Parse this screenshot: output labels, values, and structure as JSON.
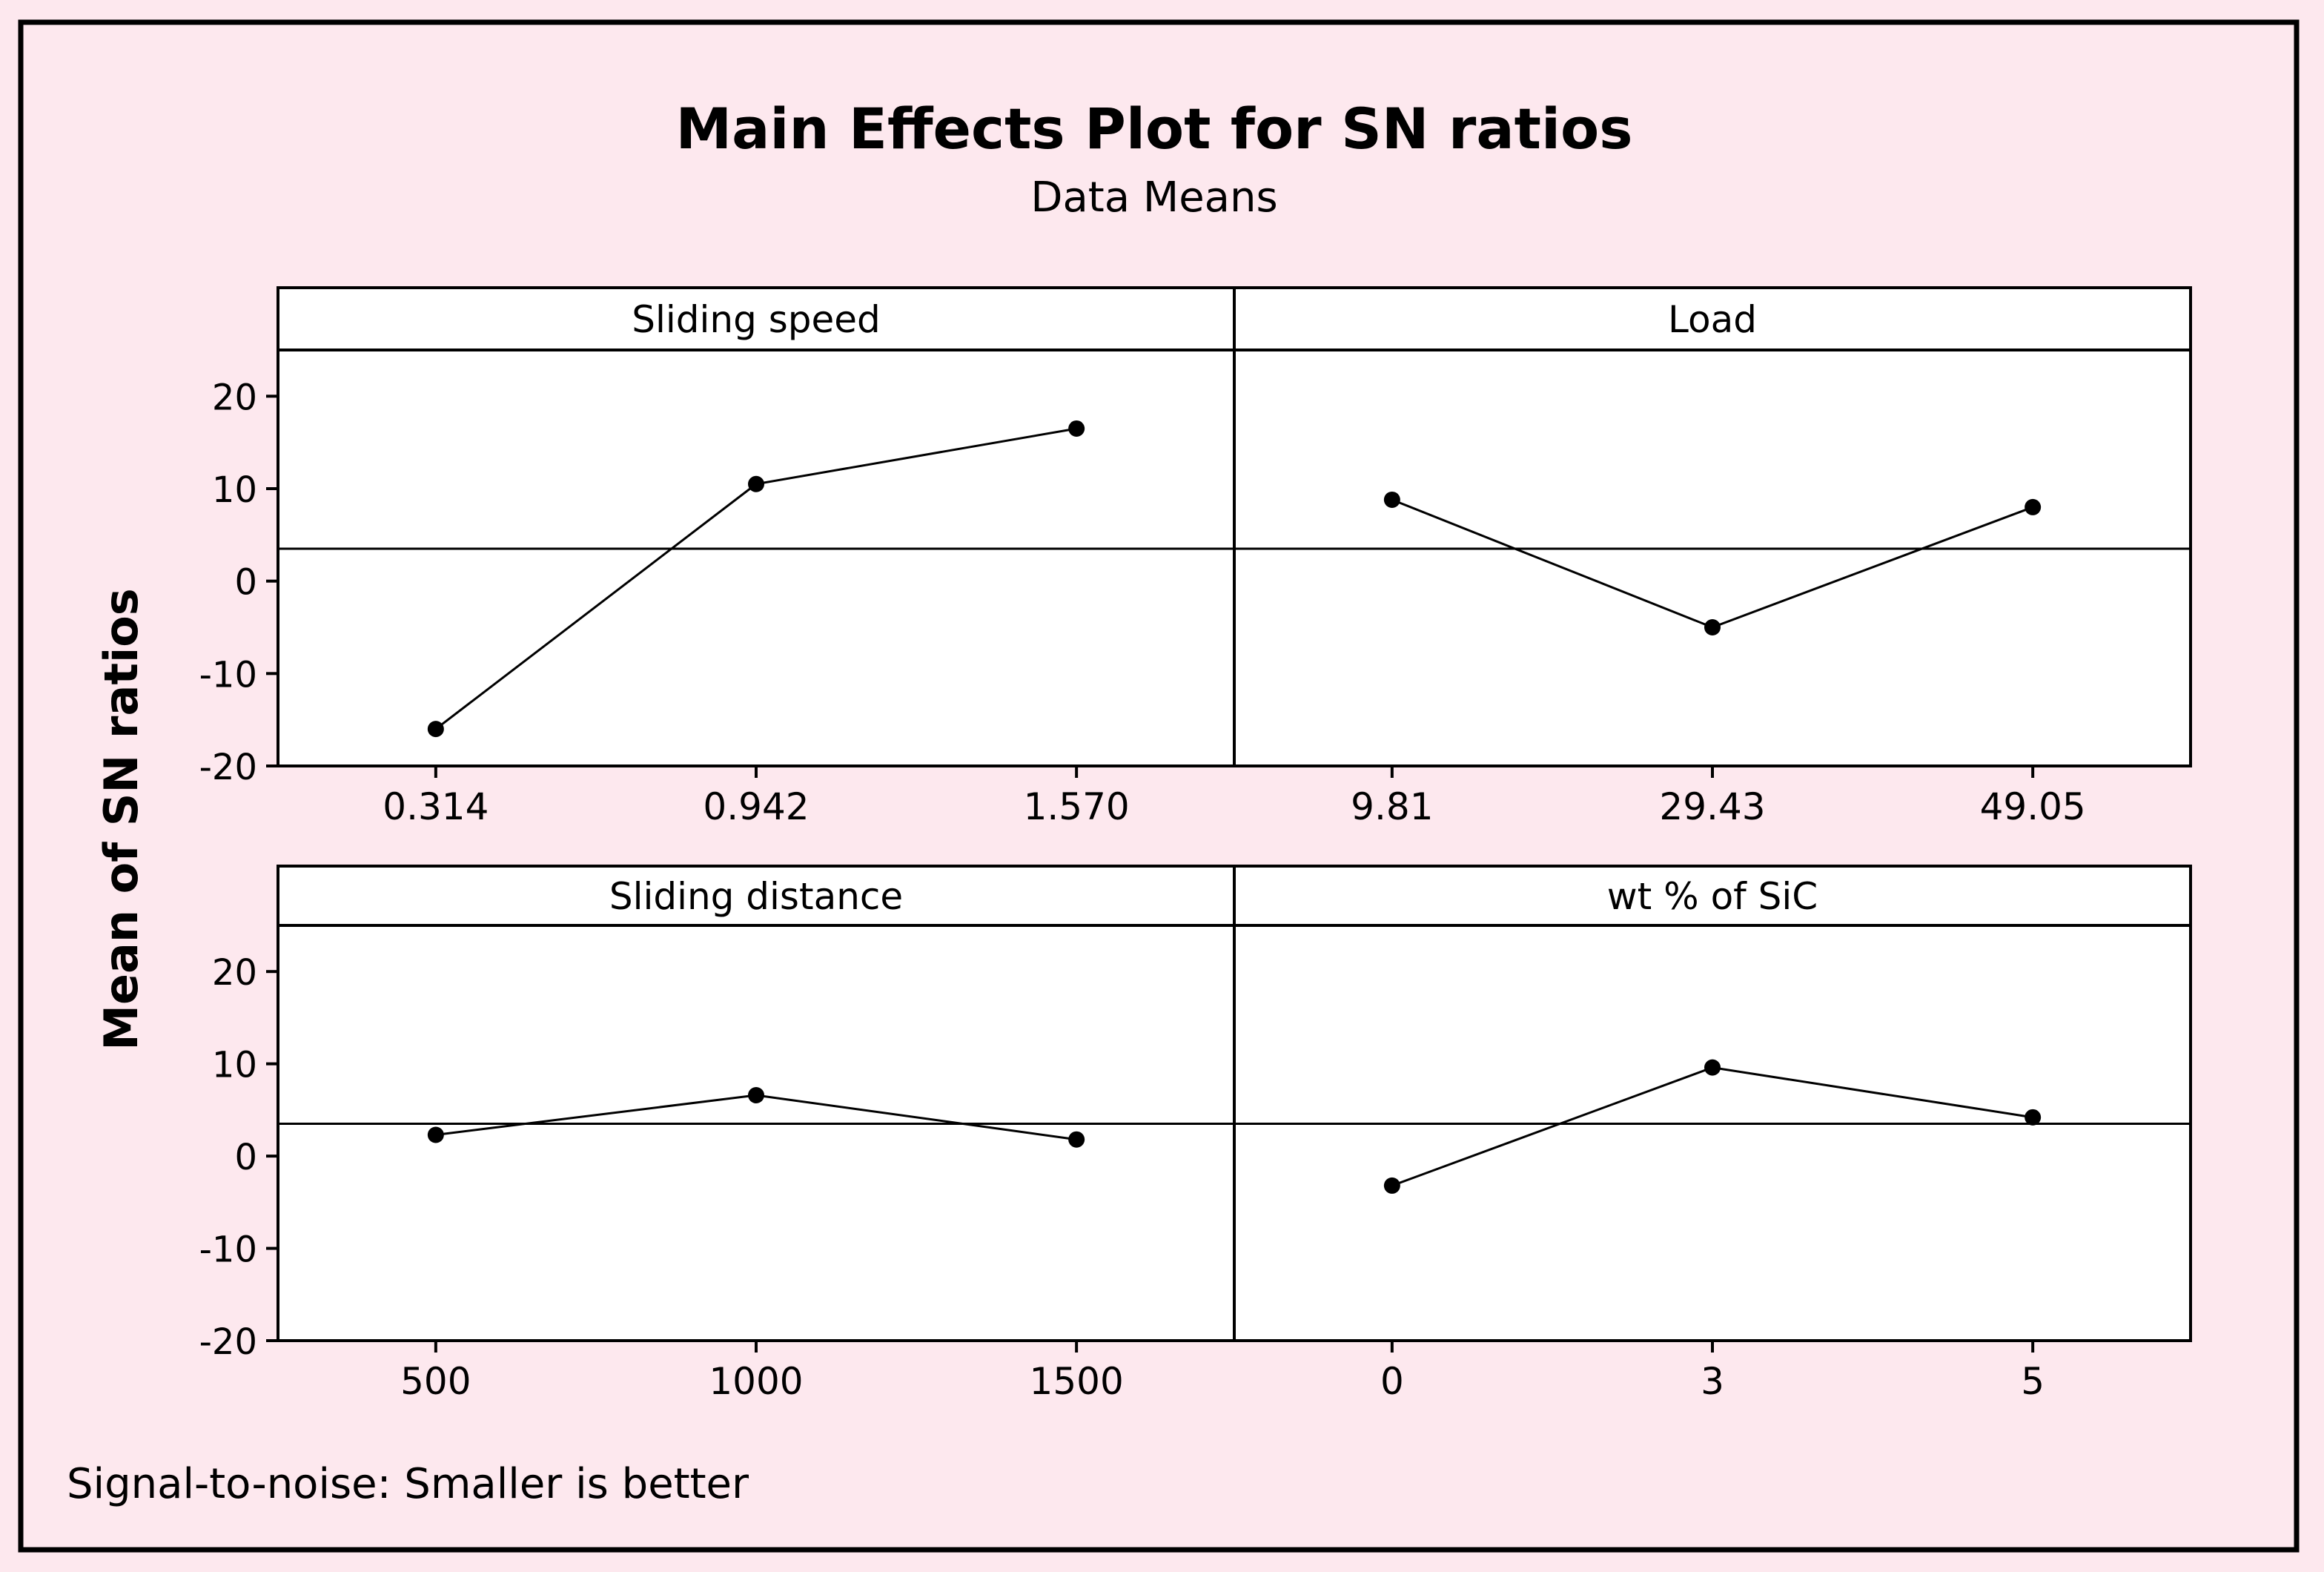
{
  "chart_data": {
    "type": "line",
    "title": "Main Effects Plot for SN ratios",
    "subtitle": "Data Means",
    "ylabel": "Mean of SN ratios",
    "footnote": "Signal-to-noise: Smaller is better",
    "ylim": [
      -20,
      25
    ],
    "yticks": [
      20,
      10,
      0,
      -10,
      -20
    ],
    "reference_line": 3.5,
    "panels": [
      {
        "name": "Sliding speed",
        "categories": [
          "0.314",
          "0.942",
          "1.570"
        ],
        "values": [
          -16.0,
          10.5,
          16.5
        ]
      },
      {
        "name": "Load",
        "categories": [
          "9.81",
          "29.43",
          "49.05"
        ],
        "values": [
          8.8,
          -5.0,
          8.0
        ]
      },
      {
        "name": "Sliding distance",
        "categories": [
          "500",
          "1000",
          "1500"
        ],
        "values": [
          2.3,
          6.6,
          1.8
        ]
      },
      {
        "name": "wt % of SiC",
        "categories": [
          "0",
          "3",
          "5"
        ],
        "values": [
          -3.2,
          9.6,
          4.2
        ]
      }
    ],
    "colors": {
      "background": "#fde8ee",
      "plot_background": "#ffffff",
      "line": "#000000",
      "marker": "#000000"
    }
  }
}
